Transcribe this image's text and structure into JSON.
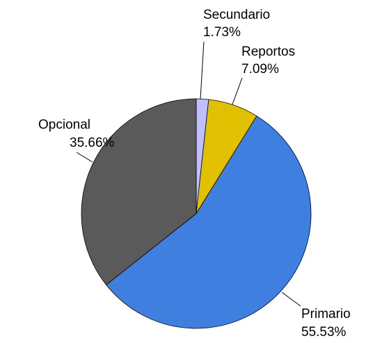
{
  "chart_data": {
    "type": "pie",
    "categories": [
      "Secundario",
      "Reportos",
      "Primario",
      "Opcional"
    ],
    "values": [
      1.73,
      7.09,
      55.53,
      35.66
    ],
    "value_labels": [
      "1.73%",
      "7.09%",
      "55.53%",
      "35.66%"
    ],
    "colors": [
      "#bfbfff",
      "#e0c000",
      "#3f7fdf",
      "#5a5a5a"
    ]
  }
}
